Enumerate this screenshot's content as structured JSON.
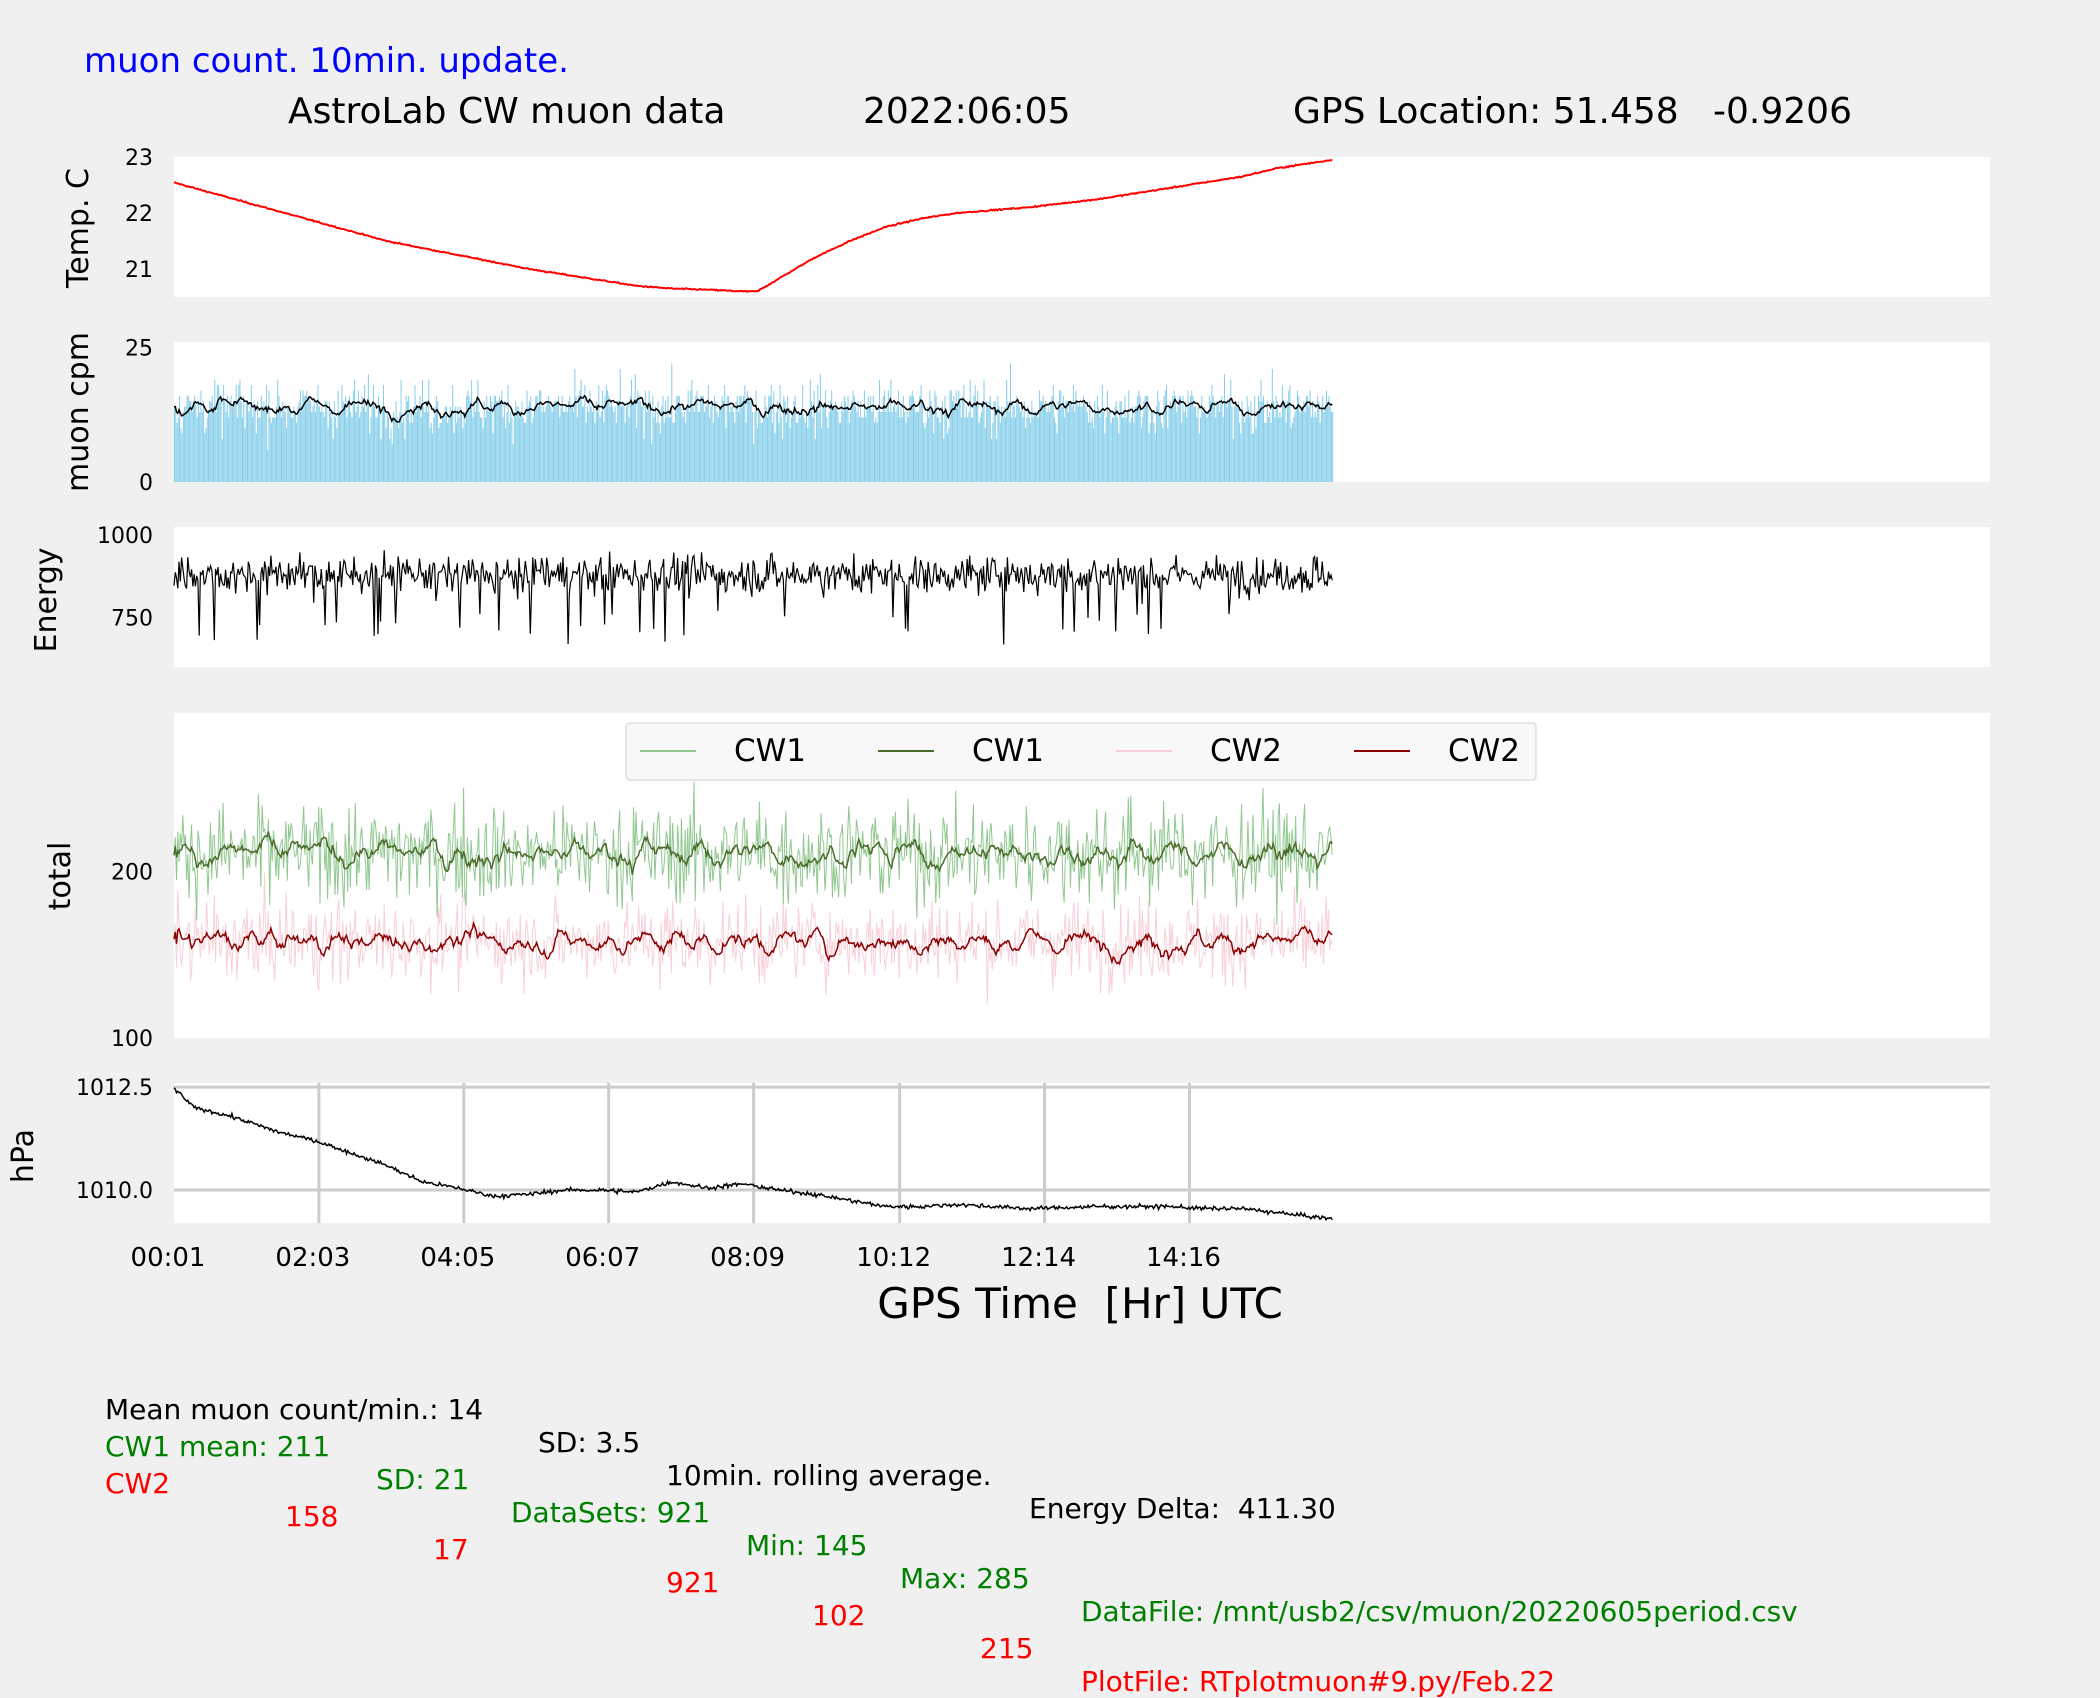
{
  "header": {
    "update_note": "muon count.  10min. update.",
    "title": "AstroLab CW muon data",
    "date": "2022:06:05",
    "gps_location": "GPS Location: 51.458   -0.9206"
  },
  "colors": {
    "background": "#f0f0f0",
    "panel": "#ffffff",
    "temperature": "#ff0000",
    "muon_bars": "#87ceeb",
    "muon_avg": "#000000",
    "energy": "#000000",
    "cw1_raw": "#90c890",
    "cw1_avg": "#4a6b2a",
    "cw2_raw": "#f8d0d8",
    "cw2_avg": "#8b0000",
    "pressure": "#000000",
    "header_blue": "#0000ff",
    "footer_green": "#008000",
    "footer_red": "#ff0000"
  },
  "chart_data": [
    {
      "type": "line",
      "ylabel": "Temp. C",
      "ylim": [
        20.5,
        23
      ],
      "yticks": [
        "21",
        "22",
        "23"
      ],
      "ytick_values": [
        21,
        22,
        23
      ],
      "series": [
        {
          "x": [
            0.0,
            1.0,
            2.0,
            3.0,
            4.0,
            5.0,
            5.5,
            6.0,
            6.5,
            7.0,
            7.5,
            8.0,
            8.2,
            8.6,
            9.0,
            9.5,
            10.0,
            10.5,
            11.0,
            12.0,
            13.0,
            14.0,
            15.0,
            15.5,
            16.27
          ],
          "values": [
            22.55,
            22.2,
            21.85,
            21.5,
            21.25,
            21.0,
            20.9,
            20.8,
            20.7,
            20.65,
            20.63,
            20.6,
            20.6,
            20.9,
            21.2,
            21.5,
            21.75,
            21.9,
            22.0,
            22.1,
            22.25,
            22.45,
            22.65,
            22.8,
            22.95
          ]
        }
      ]
    },
    {
      "type": "bar",
      "ylabel": "muon cpm",
      "ylim": [
        0,
        26
      ],
      "yticks": [
        "0",
        "25"
      ],
      "ytick_values": [
        0,
        25
      ],
      "mean": 14,
      "series": [
        {
          "name": "muon count/min"
        },
        {
          "name": "10min. rolling average"
        }
      ]
    },
    {
      "type": "line",
      "ylabel": "Energy",
      "ylim": [
        600,
        1025
      ],
      "yticks": [
        "750",
        "1000"
      ],
      "ytick_values": [
        750,
        1000
      ],
      "mean": 880
    },
    {
      "type": "line",
      "ylabel": "total",
      "ylim": [
        100,
        295
      ],
      "yticks": [
        "100",
        "200"
      ],
      "ytick_values": [
        100,
        200
      ],
      "legend": "top-center",
      "series": [
        {
          "name": "CW1",
          "style": "raw",
          "mean": 211,
          "min": 145,
          "max": 285
        },
        {
          "name": "CW1",
          "style": "rolling"
        },
        {
          "name": "CW2",
          "style": "raw",
          "mean": 158,
          "min": 102,
          "max": 215
        },
        {
          "name": "CW2",
          "style": "rolling"
        }
      ]
    },
    {
      "type": "line",
      "ylabel": "hPa",
      "ylim": [
        1009.2,
        1012.6
      ],
      "yticks": [
        "1010.0",
        "1012.5"
      ],
      "ytick_values": [
        1010.0,
        1012.5
      ],
      "grid": true,
      "series": [
        {
          "x": [
            0.0,
            0.3,
            0.8,
            1.5,
            2.0,
            2.5,
            3.0,
            3.5,
            4.0,
            4.5,
            5.0,
            5.5,
            6.0,
            6.5,
            7.0,
            7.5,
            8.0,
            8.5,
            9.0,
            9.5,
            10.0,
            10.5,
            11.0,
            12.0,
            13.0,
            14.0,
            14.5,
            15.0,
            15.5,
            16.0,
            16.27
          ],
          "values": [
            1012.5,
            1012.0,
            1011.8,
            1011.4,
            1011.2,
            1010.9,
            1010.6,
            1010.2,
            1010.05,
            1009.85,
            1009.9,
            1010.0,
            1010.0,
            1009.95,
            1010.2,
            1010.05,
            1010.15,
            1010.0,
            1009.9,
            1009.75,
            1009.6,
            1009.6,
            1009.65,
            1009.55,
            1009.6,
            1009.6,
            1009.55,
            1009.55,
            1009.45,
            1009.35,
            1009.3
          ]
        }
      ]
    }
  ],
  "x_axis": {
    "ticks": [
      "00:01",
      "02:03",
      "04:05",
      "06:07",
      "08:09",
      "10:12",
      "12:14",
      "14:16"
    ],
    "tick_hours": [
      0.0167,
      2.05,
      4.0833,
      6.1167,
      8.15,
      10.2,
      12.2333,
      14.2667
    ],
    "xlim": [
      0.0167,
      25.5
    ],
    "data_end_hour": 16.27,
    "label": "GPS Time  [Hr] UTC"
  },
  "footer": {
    "line1": {
      "mean_muon": "Mean muon count/min.: 14",
      "sd": "SD: 3.5",
      "rolling": "10min. rolling average.",
      "energy_delta": "Energy Delta:  411.30"
    },
    "cw1": {
      "name": "CW1 mean: 211",
      "sd": "SD: 21",
      "datasets": "DataSets: 921",
      "min": "Min: 145",
      "max": "Max: 285",
      "file": "DataFile: /mnt/usb2/csv/muon/20220605period.csv"
    },
    "cw2": {
      "name": "CW2",
      "mean": "158",
      "sd": "17",
      "datasets": "921",
      "min": "102",
      "max": "215",
      "file": "PlotFile: RTplotmuon#9.py/Feb.22"
    }
  }
}
